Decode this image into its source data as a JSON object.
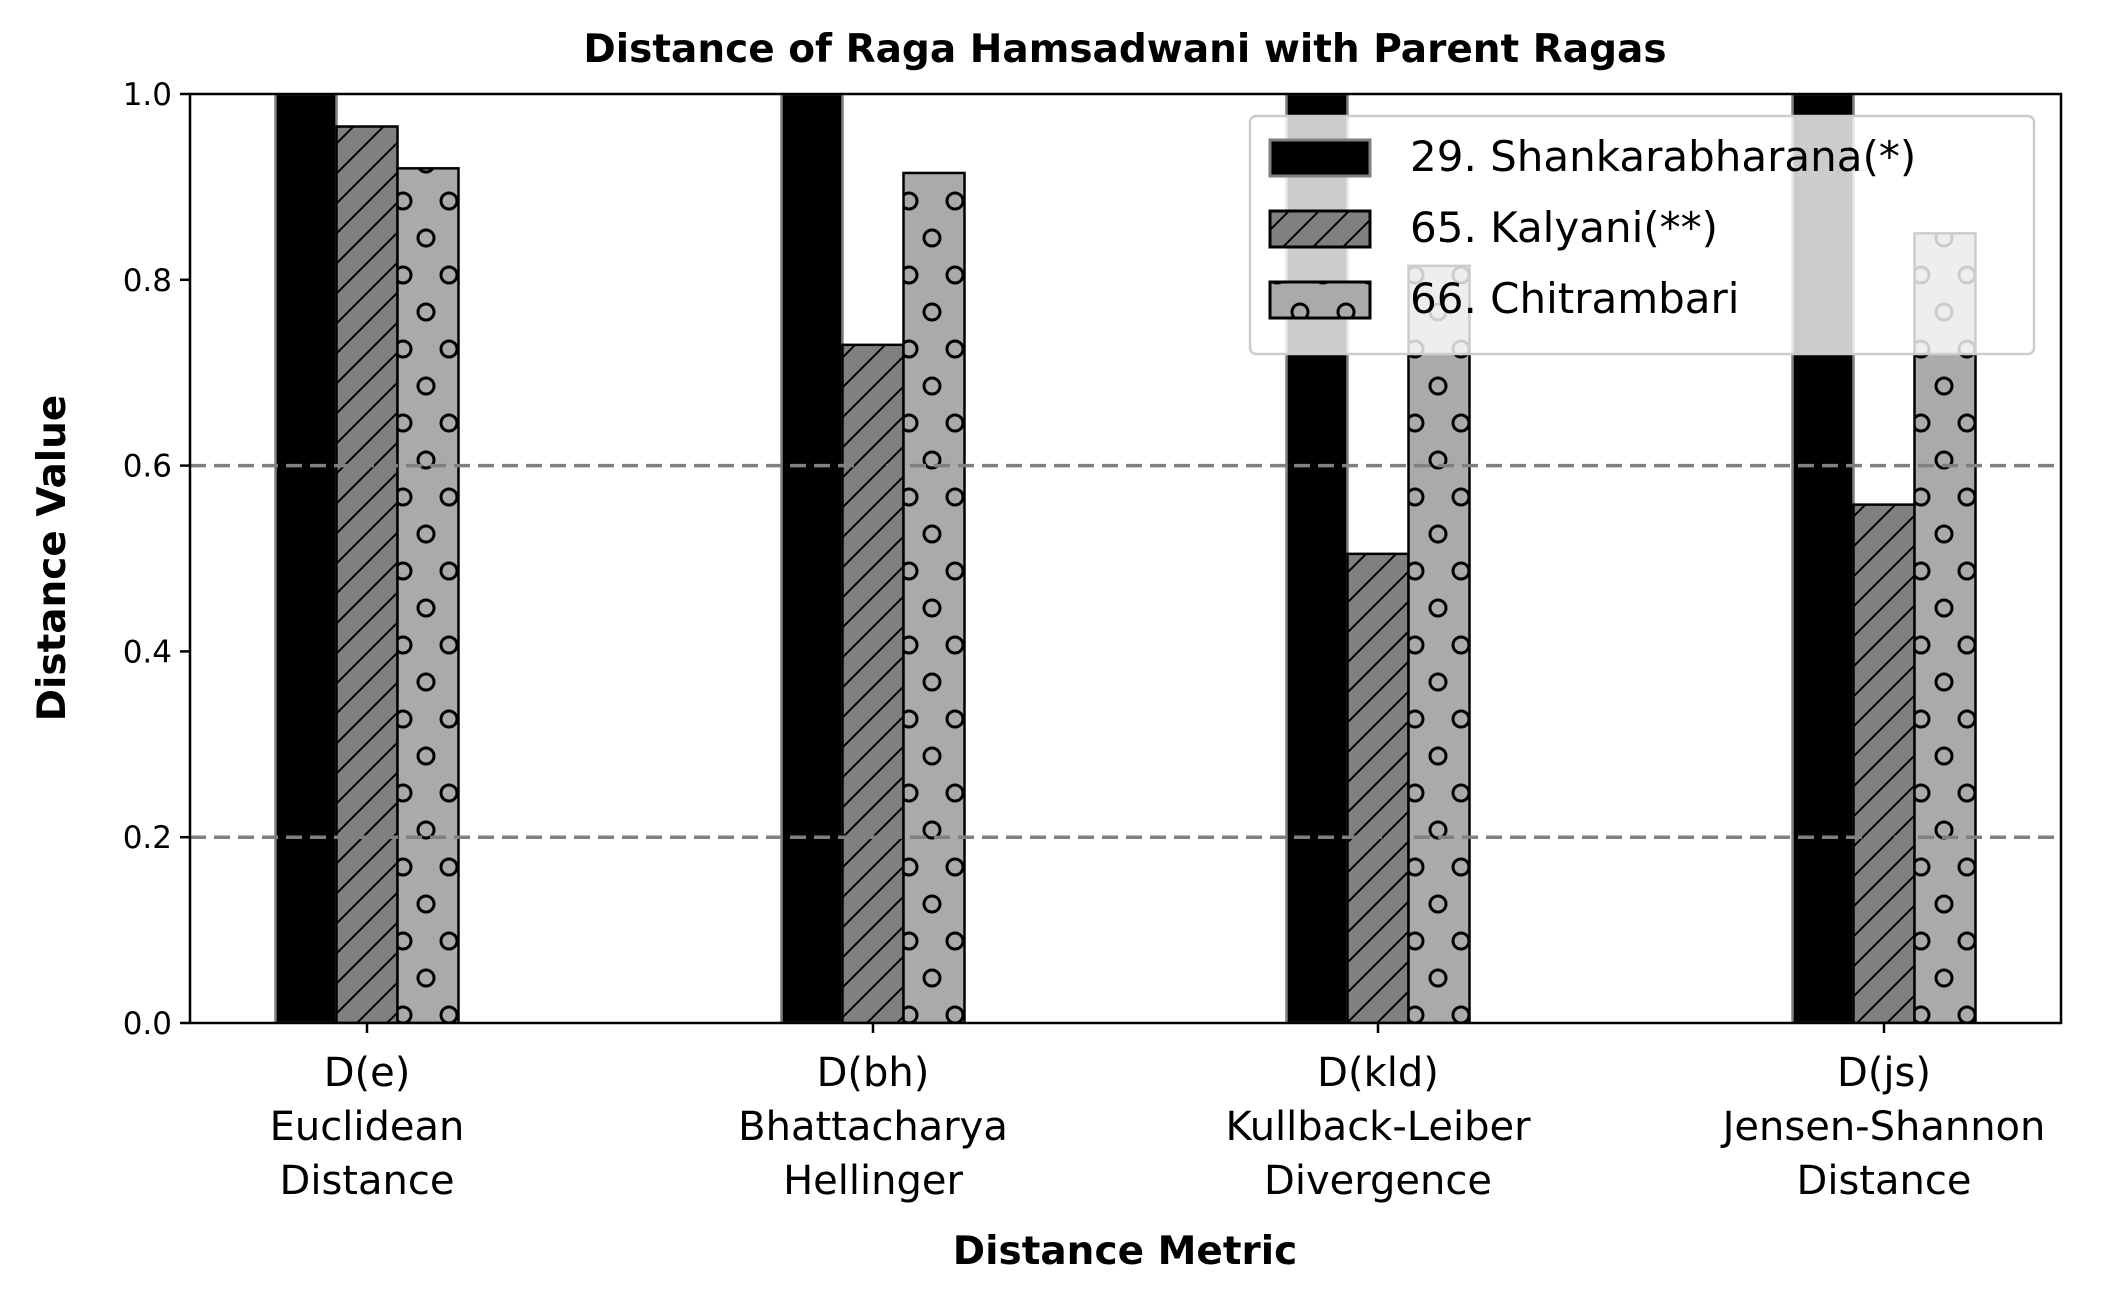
{
  "chart_data": {
    "type": "bar",
    "title": "Distance of Raga Hamsadwani with Parent Ragas",
    "xlabel": "Distance Metric",
    "ylabel": "Distance Value",
    "ylim": [
      0,
      1.0
    ],
    "yticks": [
      "0.0",
      "0.2",
      "0.4",
      "0.6",
      "0.8",
      "1.0"
    ],
    "reference_lines": [
      0.2,
      0.6
    ],
    "categories": [
      [
        "D(e)",
        "Euclidean",
        "Distance"
      ],
      [
        "D(bh)",
        "Bhattacharya",
        "Hellinger"
      ],
      [
        "D(kld)",
        "Kullback-Leiber",
        "Divergence"
      ],
      [
        "D(js)",
        "Jensen-Shannon",
        "Distance"
      ]
    ],
    "series": [
      {
        "name": "29. Shankarabharana(*)",
        "values": [
          1.0,
          1.0,
          1.0,
          1.0
        ],
        "color": "#000000",
        "pattern": "solid"
      },
      {
        "name": "65. Kalyani(**)",
        "values": [
          0.965,
          0.73,
          0.505,
          0.558
        ],
        "color": "#808080",
        "pattern": "hatch"
      },
      {
        "name": "66. Chitrambari",
        "values": [
          0.92,
          0.915,
          0.815,
          0.85
        ],
        "color": "#aaaaaa",
        "pattern": "circles"
      }
    ],
    "grid": false,
    "legend_position": "top-right"
  }
}
